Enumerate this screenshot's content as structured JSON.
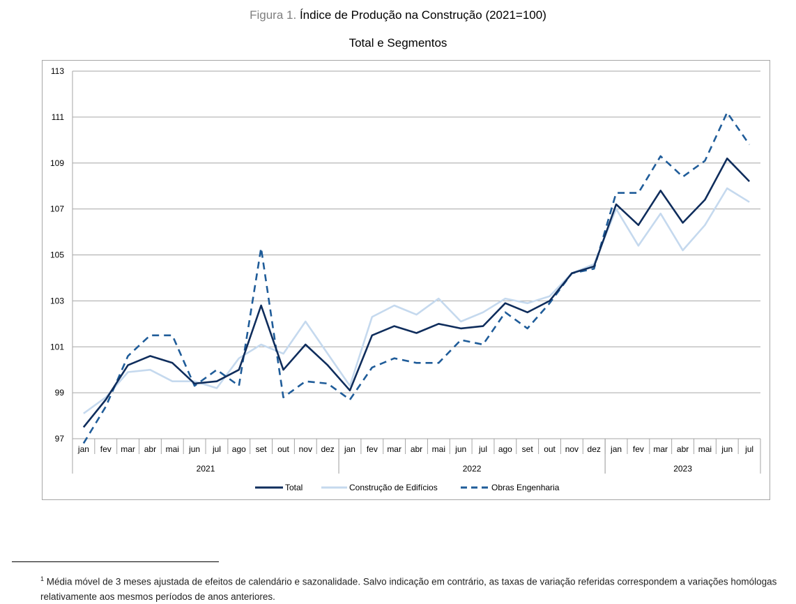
{
  "figure": {
    "label": "Figura 1.",
    "title": "Índice de Produção na Construção (2021=100)",
    "subtitle": "Total e Segmentos"
  },
  "footnote": {
    "marker": "1",
    "text": "Média móvel de 3 meses ajustada de efeitos de calendário e sazonalidade. Salvo indicação em contrário, as taxas de variação referidas correspondem a variações homólogas relativamente aos mesmos períodos de anos anteriores."
  },
  "chart_data": {
    "type": "line",
    "title": "Índice de Produção na Construção (2021=100)",
    "subtitle": "Total e Segmentos",
    "categories": [
      "jan",
      "fev",
      "mar",
      "abr",
      "mai",
      "jun",
      "jul",
      "ago",
      "set",
      "out",
      "nov",
      "dez",
      "jan",
      "fev",
      "mar",
      "abr",
      "mai",
      "jun",
      "jul",
      "ago",
      "set",
      "out",
      "nov",
      "dez",
      "jan",
      "fev",
      "mar",
      "abr",
      "mai",
      "jun",
      "jul"
    ],
    "years": [
      {
        "label": "2021",
        "start": 0,
        "end": 11
      },
      {
        "label": "2022",
        "start": 12,
        "end": 23
      },
      {
        "label": "2023",
        "start": 24,
        "end": 30
      }
    ],
    "ylim": [
      97,
      113
    ],
    "yticks": [
      97,
      99,
      101,
      103,
      105,
      107,
      109,
      111,
      113
    ],
    "grid": true,
    "legend_position": "bottom",
    "series": [
      {
        "name": "Total",
        "color": "#0f2d5c",
        "style": "solid",
        "values": [
          97.5,
          98.7,
          100.2,
          100.6,
          100.3,
          99.4,
          99.5,
          100.0,
          102.8,
          100.0,
          101.1,
          100.2,
          99.1,
          101.5,
          101.9,
          101.6,
          102.0,
          101.8,
          101.9,
          102.9,
          102.5,
          103.0,
          104.2,
          104.5,
          107.2,
          106.3,
          107.8,
          106.4,
          107.4,
          109.2,
          108.2
        ]
      },
      {
        "name": "Construção de Edifícios",
        "color": "#c5d9ee",
        "style": "solid",
        "values": [
          98.1,
          98.8,
          99.9,
          100.0,
          99.5,
          99.5,
          99.2,
          100.5,
          101.1,
          100.7,
          102.1,
          100.7,
          99.3,
          102.3,
          102.8,
          102.4,
          103.1,
          102.1,
          102.5,
          103.1,
          102.9,
          103.2,
          104.2,
          104.6,
          107.0,
          105.4,
          106.8,
          105.2,
          106.3,
          107.9,
          107.3
        ]
      },
      {
        "name": "Obras Engenharia",
        "color": "#1f5c99",
        "style": "dashed",
        "values": [
          96.8,
          98.4,
          100.6,
          101.5,
          101.5,
          99.3,
          100.0,
          99.3,
          105.3,
          98.8,
          99.5,
          99.4,
          98.7,
          100.1,
          100.5,
          100.3,
          100.3,
          101.3,
          101.1,
          102.5,
          101.8,
          102.9,
          104.2,
          104.4,
          107.7,
          107.7,
          109.3,
          108.4,
          109.1,
          111.2,
          109.8
        ]
      }
    ]
  }
}
